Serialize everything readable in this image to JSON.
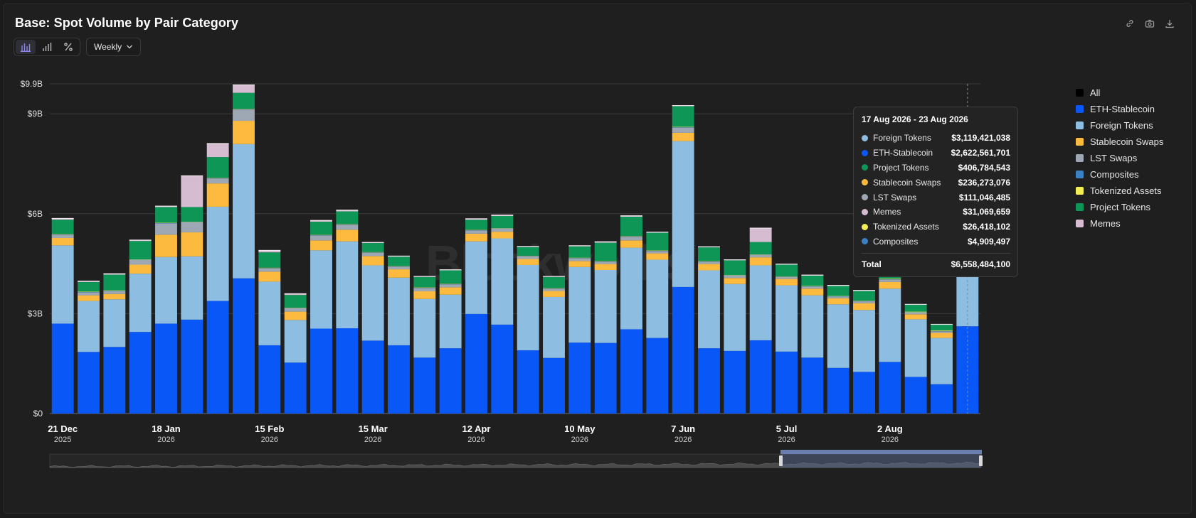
{
  "header": {
    "title": "Base: Spot Volume by Pair Category"
  },
  "toolbar": {
    "view_icons": [
      "stacked-bar-icon",
      "bar-icon",
      "percent-icon"
    ],
    "interval": "Weekly"
  },
  "top_icons": [
    "link-icon",
    "camera-icon",
    "download-icon"
  ],
  "watermark": "Blockworks",
  "legend": [
    {
      "label": "All",
      "color": "#000000"
    },
    {
      "label": "ETH-Stablecoin",
      "color": "#0a57f7"
    },
    {
      "label": "Foreign Tokens",
      "color": "#8ebde2"
    },
    {
      "label": "Stablecoin Swaps",
      "color": "#fcbb3f"
    },
    {
      "label": "LST Swaps",
      "color": "#9ea8b4"
    },
    {
      "label": "Composites",
      "color": "#3c80c4"
    },
    {
      "label": "Tokenized Assets",
      "color": "#f4ee55"
    },
    {
      "label": "Project Tokens",
      "color": "#0e9657"
    },
    {
      "label": "Memes",
      "color": "#d6bcd0"
    }
  ],
  "tooltip": {
    "title": "17 Aug 2026 - 23 Aug 2026",
    "rows": [
      {
        "name": "Foreign Tokens",
        "value": "$3,119,421,038",
        "color": "#8ebde2"
      },
      {
        "name": "ETH-Stablecoin",
        "value": "$2,622,561,701",
        "color": "#0a57f7"
      },
      {
        "name": "Project Tokens",
        "value": "$406,784,543",
        "color": "#0e9657"
      },
      {
        "name": "Stablecoin Swaps",
        "value": "$236,273,076",
        "color": "#fcbb3f"
      },
      {
        "name": "LST Swaps",
        "value": "$111,046,485",
        "color": "#9ea8b4"
      },
      {
        "name": "Memes",
        "value": "$31,069,659",
        "color": "#d6bcd0"
      },
      {
        "name": "Tokenized Assets",
        "value": "$26,418,102",
        "color": "#f4ee55"
      },
      {
        "name": "Composites",
        "value": "$4,909,497",
        "color": "#3c80c4"
      }
    ],
    "total_label": "Total",
    "total_value": "$6,558,484,100"
  },
  "chart_data": {
    "type": "bar",
    "stacked": true,
    "title": "Base: Spot Volume by Pair Category",
    "ylim": [
      0,
      9.9
    ],
    "y_unit": "billions USD",
    "y_ticks": [
      {
        "value": 0,
        "label": "$0"
      },
      {
        "value": 3,
        "label": "$3B"
      },
      {
        "value": 6,
        "label": "$6B"
      },
      {
        "value": 9,
        "label": "$9B"
      },
      {
        "value": 9.9,
        "label": "$9.9B"
      }
    ],
    "x_ticks": [
      {
        "index": 0,
        "label": "21 Dec",
        "year": "2025"
      },
      {
        "index": 4,
        "label": "18 Jan",
        "year": "2026"
      },
      {
        "index": 8,
        "label": "15 Feb",
        "year": "2026"
      },
      {
        "index": 12,
        "label": "15 Mar",
        "year": "2026"
      },
      {
        "index": 16,
        "label": "12 Apr",
        "year": "2026"
      },
      {
        "index": 20,
        "label": "10 May",
        "year": "2026"
      },
      {
        "index": 24,
        "label": "7 Jun",
        "year": "2026"
      },
      {
        "index": 28,
        "label": "5 Jul",
        "year": "2026"
      },
      {
        "index": 32,
        "label": "2 Aug",
        "year": "2026"
      }
    ],
    "categories": [
      "21 Dec 2025",
      "28 Dec 2025",
      "4 Jan 2026",
      "11 Jan 2026",
      "18 Jan 2026",
      "25 Jan 2026",
      "1 Feb 2026",
      "8 Feb 2026",
      "15 Feb 2026",
      "22 Feb 2026",
      "1 Mar 2026",
      "8 Mar 2026",
      "15 Mar 2026",
      "22 Mar 2026",
      "29 Mar 2026",
      "5 Apr 2026",
      "12 Apr 2026",
      "19 Apr 2026",
      "26 Apr 2026",
      "3 May 2026",
      "10 May 2026",
      "17 May 2026",
      "24 May 2026",
      "31 May 2026",
      "7 Jun 2026",
      "14 Jun 2026",
      "21 Jun 2026",
      "28 Jun 2026",
      "5 Jul 2026",
      "12 Jul 2026",
      "19 Jul 2026",
      "26 Jul 2026",
      "2 Aug 2026",
      "9 Aug 2026",
      "16 Aug 2026",
      "23 Aug 2026"
    ],
    "series": [
      {
        "name": "ETH-Stablecoin",
        "color": "#0a57f7",
        "values": [
          2.7,
          1.85,
          2.0,
          2.45,
          2.7,
          2.82,
          3.38,
          4.06,
          2.05,
          1.53,
          2.55,
          2.56,
          2.19,
          2.05,
          1.68,
          1.96,
          2.99,
          2.67,
          1.9,
          1.67,
          2.13,
          2.12,
          2.53,
          2.27,
          3.8,
          1.96,
          1.88,
          2.2,
          1.86,
          1.68,
          1.37,
          1.25,
          1.55,
          1.1,
          0.88,
          2.62
        ]
      },
      {
        "name": "Foreign Tokens",
        "color": "#8ebde2",
        "values": [
          2.35,
          1.53,
          1.43,
          1.75,
          2.0,
          1.9,
          2.83,
          4.03,
          1.91,
          1.28,
          2.35,
          2.61,
          2.26,
          2.03,
          1.76,
          1.61,
          2.18,
          2.59,
          2.56,
          1.83,
          2.27,
          2.19,
          2.45,
          2.35,
          4.38,
          2.34,
          2.01,
          2.25,
          1.99,
          1.87,
          1.91,
          1.86,
          2.2,
          1.73,
          1.39,
          3.12
        ]
      },
      {
        "name": "Stablecoin Swaps",
        "color": "#fcbb3f",
        "values": [
          0.22,
          0.17,
          0.16,
          0.27,
          0.67,
          0.72,
          0.7,
          0.7,
          0.3,
          0.25,
          0.3,
          0.35,
          0.28,
          0.25,
          0.23,
          0.22,
          0.23,
          0.2,
          0.18,
          0.18,
          0.18,
          0.18,
          0.22,
          0.19,
          0.25,
          0.19,
          0.18,
          0.24,
          0.19,
          0.2,
          0.18,
          0.2,
          0.2,
          0.15,
          0.15,
          0.24
        ]
      },
      {
        "name": "LST Swaps",
        "color": "#9ea8b4",
        "values": [
          0.1,
          0.09,
          0.09,
          0.14,
          0.34,
          0.3,
          0.15,
          0.34,
          0.1,
          0.1,
          0.15,
          0.15,
          0.1,
          0.08,
          0.1,
          0.09,
          0.1,
          0.09,
          0.08,
          0.07,
          0.08,
          0.07,
          0.11,
          0.07,
          0.16,
          0.07,
          0.07,
          0.07,
          0.06,
          0.06,
          0.05,
          0.06,
          0.07,
          0.05,
          0.05,
          0.11
        ]
      },
      {
        "name": "Composites",
        "color": "#3c80c4",
        "values": [
          0.01,
          0.01,
          0.01,
          0.01,
          0.01,
          0.01,
          0.01,
          0.01,
          0.01,
          0.01,
          0.01,
          0.01,
          0.01,
          0.01,
          0.01,
          0.01,
          0.01,
          0.01,
          0.01,
          0.01,
          0.01,
          0.01,
          0.01,
          0.01,
          0.01,
          0.01,
          0.01,
          0.01,
          0.01,
          0.01,
          0.01,
          0.01,
          0.01,
          0.01,
          0.01,
          0.005
        ]
      },
      {
        "name": "Tokenized Assets",
        "color": "#f4ee55",
        "values": [
          0.01,
          0.01,
          0.01,
          0.01,
          0.01,
          0.01,
          0.01,
          0.01,
          0.01,
          0.01,
          0.01,
          0.01,
          0.01,
          0.01,
          0.01,
          0.01,
          0.01,
          0.01,
          0.01,
          0.01,
          0.01,
          0.01,
          0.01,
          0.01,
          0.01,
          0.01,
          0.01,
          0.01,
          0.01,
          0.01,
          0.01,
          0.01,
          0.02,
          0.02,
          0.02,
          0.03
        ]
      },
      {
        "name": "Project Tokens",
        "color": "#0e9657",
        "values": [
          0.43,
          0.29,
          0.47,
          0.55,
          0.47,
          0.44,
          0.62,
          0.48,
          0.46,
          0.38,
          0.39,
          0.38,
          0.27,
          0.28,
          0.31,
          0.4,
          0.3,
          0.36,
          0.26,
          0.33,
          0.34,
          0.55,
          0.58,
          0.53,
          0.62,
          0.41,
          0.44,
          0.37,
          0.35,
          0.31,
          0.3,
          0.29,
          0.26,
          0.21,
          0.17,
          0.41
        ]
      },
      {
        "name": "Memes",
        "color": "#d6bcd0",
        "values": [
          0.05,
          0.04,
          0.04,
          0.04,
          0.04,
          0.95,
          0.42,
          0.25,
          0.07,
          0.05,
          0.05,
          0.05,
          0.03,
          0.03,
          0.03,
          0.03,
          0.04,
          0.04,
          0.03,
          0.03,
          0.03,
          0.04,
          0.04,
          0.03,
          0.03,
          0.03,
          0.03,
          0.43,
          0.03,
          0.03,
          0.03,
          0.03,
          0.15,
          0.02,
          0.02,
          0.03
        ]
      }
    ],
    "totals_note": "",
    "highlight_index": 35,
    "legend_position": "right",
    "grid": true
  }
}
